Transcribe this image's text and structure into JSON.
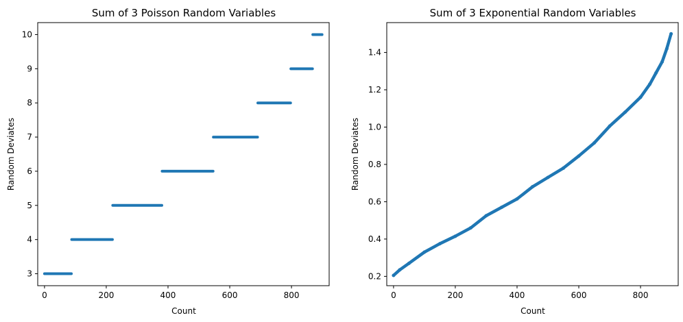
{
  "chart_data": [
    {
      "type": "scatter",
      "title": "Sum of 3 Poisson Random Variables",
      "xlabel": "Count",
      "ylabel": "Random Deviates",
      "xlim": [
        -22,
        922
      ],
      "ylim": [
        2.65,
        10.35
      ],
      "xticks": [
        0,
        200,
        400,
        600,
        800
      ],
      "yticks": [
        3,
        4,
        5,
        6,
        7,
        8,
        9,
        10
      ],
      "grid": false,
      "color": "#1f77b4",
      "segments": [
        {
          "value": 3,
          "x_start": 0,
          "x_end": 87
        },
        {
          "value": 4,
          "x_start": 88,
          "x_end": 220
        },
        {
          "value": 5,
          "x_start": 221,
          "x_end": 380
        },
        {
          "value": 6,
          "x_start": 381,
          "x_end": 546
        },
        {
          "value": 7,
          "x_start": 547,
          "x_end": 690
        },
        {
          "value": 8,
          "x_start": 691,
          "x_end": 797
        },
        {
          "value": 9,
          "x_start": 798,
          "x_end": 868
        },
        {
          "value": 10,
          "x_start": 869,
          "x_end": 899
        }
      ]
    },
    {
      "type": "scatter",
      "title": "Sum of 3 Exponential Random Variables",
      "xlabel": "Count",
      "ylabel": "Random Deviates",
      "xlim": [
        -22,
        922
      ],
      "ylim": [
        0.15,
        1.56
      ],
      "xticks": [
        0,
        200,
        400,
        600,
        800
      ],
      "yticks": [
        0.2,
        0.4,
        0.6,
        0.8,
        1.0,
        1.2,
        1.4
      ],
      "ytick_labels": [
        "0.2",
        "0.4",
        "0.6",
        "0.8",
        "1.0",
        "1.2",
        "1.4"
      ],
      "grid": false,
      "color": "#1f77b4",
      "curve": [
        [
          0,
          0.205
        ],
        [
          20,
          0.235
        ],
        [
          50,
          0.27
        ],
        [
          100,
          0.33
        ],
        [
          150,
          0.375
        ],
        [
          200,
          0.415
        ],
        [
          250,
          0.46
        ],
        [
          300,
          0.525
        ],
        [
          350,
          0.57
        ],
        [
          400,
          0.615
        ],
        [
          450,
          0.68
        ],
        [
          500,
          0.73
        ],
        [
          550,
          0.78
        ],
        [
          600,
          0.845
        ],
        [
          650,
          0.915
        ],
        [
          700,
          1.005
        ],
        [
          750,
          1.08
        ],
        [
          800,
          1.16
        ],
        [
          830,
          1.23
        ],
        [
          850,
          1.29
        ],
        [
          870,
          1.35
        ],
        [
          885,
          1.42
        ],
        [
          899,
          1.5
        ]
      ]
    }
  ]
}
